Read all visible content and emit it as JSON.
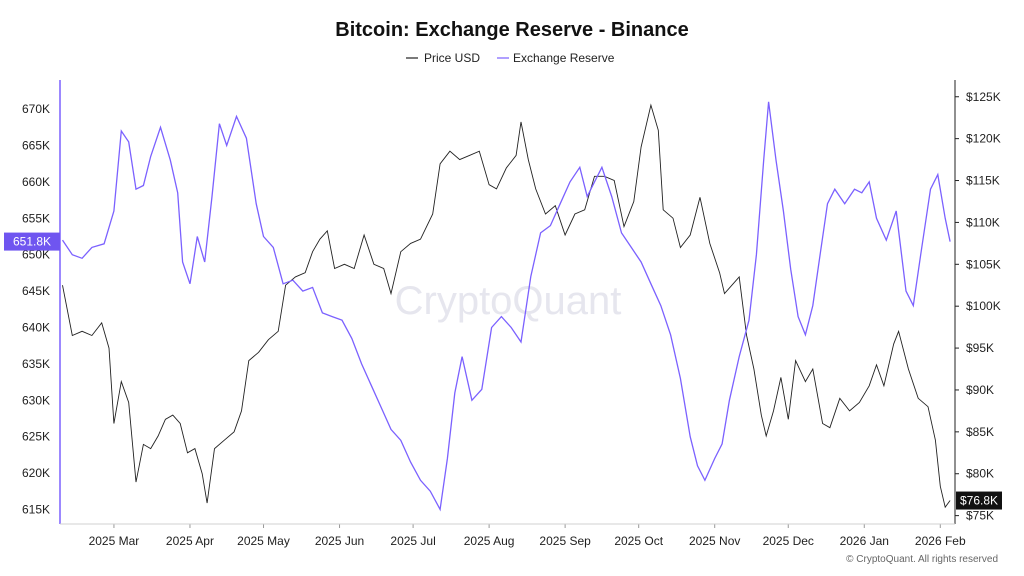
{
  "chart_data": {
    "type": "line",
    "title": "Bitcoin: Exchange Reserve - Binance",
    "legend": [
      "Price USD",
      "Exchange Reserve"
    ],
    "colors": {
      "price": "#222222",
      "reserve": "#7b61ff",
      "reserve_badge": "#6f55f0",
      "price_badge": "#111111"
    },
    "x_ticks": [
      "2025 Mar",
      "2025 Apr",
      "2025 May",
      "2025 Jun",
      "2025 Jul",
      "2025 Aug",
      "2025 Sep",
      "2025 Oct",
      "2025 Nov",
      "2025 Dec",
      "2026 Jan",
      "2026 Feb"
    ],
    "left_axis": {
      "ticks": [
        "670K",
        "665K",
        "660K",
        "655K",
        "650K",
        "645K",
        "640K",
        "635K",
        "630K",
        "625K",
        "620K",
        "615K"
      ],
      "ylim": [
        613000,
        674000
      ],
      "current_label": "651.8K"
    },
    "right_axis": {
      "ticks": [
        "$125K",
        "$120K",
        "$115K",
        "$110K",
        "$105K",
        "$100K",
        "$95K",
        "$90K",
        "$85K",
        "$80K",
        "$75K"
      ],
      "ylim": [
        74000,
        127000
      ],
      "current_label": "$76.8K"
    },
    "x_range": [
      "2025-02-07",
      "2026-02-07"
    ],
    "series": [
      {
        "name": "Exchange Reserve",
        "axis": "left",
        "points": [
          [
            "2025-02-08",
            652000
          ],
          [
            "2025-02-12",
            650000
          ],
          [
            "2025-02-16",
            649500
          ],
          [
            "2025-02-20",
            651000
          ],
          [
            "2025-02-25",
            651500
          ],
          [
            "2025-03-01",
            656000
          ],
          [
            "2025-03-04",
            667000
          ],
          [
            "2025-03-07",
            665500
          ],
          [
            "2025-03-10",
            659000
          ],
          [
            "2025-03-13",
            659500
          ],
          [
            "2025-03-16",
            663500
          ],
          [
            "2025-03-20",
            667500
          ],
          [
            "2025-03-24",
            663000
          ],
          [
            "2025-03-27",
            658500
          ],
          [
            "2025-03-29",
            649000
          ],
          [
            "2025-04-01",
            646000
          ],
          [
            "2025-04-04",
            652500
          ],
          [
            "2025-04-07",
            649000
          ],
          [
            "2025-04-10",
            658000
          ],
          [
            "2025-04-13",
            668000
          ],
          [
            "2025-04-16",
            665000
          ],
          [
            "2025-04-20",
            669000
          ],
          [
            "2025-04-24",
            666000
          ],
          [
            "2025-04-28",
            657000
          ],
          [
            "2025-05-01",
            652500
          ],
          [
            "2025-05-05",
            651000
          ],
          [
            "2025-05-09",
            646000
          ],
          [
            "2025-05-13",
            646500
          ],
          [
            "2025-05-17",
            645000
          ],
          [
            "2025-05-21",
            645500
          ],
          [
            "2025-05-25",
            642000
          ],
          [
            "2025-05-29",
            641500
          ],
          [
            "2025-06-02",
            641000
          ],
          [
            "2025-06-06",
            638500
          ],
          [
            "2025-06-10",
            635000
          ],
          [
            "2025-06-14",
            632000
          ],
          [
            "2025-06-18",
            629000
          ],
          [
            "2025-06-22",
            626000
          ],
          [
            "2025-06-26",
            624500
          ],
          [
            "2025-06-30",
            621500
          ],
          [
            "2025-07-04",
            619000
          ],
          [
            "2025-07-08",
            617500
          ],
          [
            "2025-07-12",
            615000
          ],
          [
            "2025-07-15",
            622000
          ],
          [
            "2025-07-18",
            631000
          ],
          [
            "2025-07-21",
            636000
          ],
          [
            "2025-07-25",
            630000
          ],
          [
            "2025-07-29",
            631500
          ],
          [
            "2025-08-02",
            640000
          ],
          [
            "2025-08-06",
            641500
          ],
          [
            "2025-08-10",
            640000
          ],
          [
            "2025-08-14",
            638000
          ],
          [
            "2025-08-18",
            647000
          ],
          [
            "2025-08-22",
            653000
          ],
          [
            "2025-08-26",
            654000
          ],
          [
            "2025-08-30",
            657000
          ],
          [
            "2025-09-03",
            660000
          ],
          [
            "2025-09-07",
            662000
          ],
          [
            "2025-09-10",
            658000
          ],
          [
            "2025-09-13",
            660000
          ],
          [
            "2025-09-16",
            662000
          ],
          [
            "2025-09-20",
            658000
          ],
          [
            "2025-09-24",
            653000
          ],
          [
            "2025-09-28",
            651000
          ],
          [
            "2025-10-02",
            649000
          ],
          [
            "2025-10-06",
            646000
          ],
          [
            "2025-10-10",
            643000
          ],
          [
            "2025-10-14",
            639000
          ],
          [
            "2025-10-18",
            633000
          ],
          [
            "2025-10-22",
            625000
          ],
          [
            "2025-10-25",
            621000
          ],
          [
            "2025-10-28",
            619000
          ],
          [
            "2025-11-01",
            622000
          ],
          [
            "2025-11-04",
            624000
          ],
          [
            "2025-11-07",
            630000
          ],
          [
            "2025-11-11",
            636000
          ],
          [
            "2025-11-15",
            641000
          ],
          [
            "2025-11-18",
            650000
          ],
          [
            "2025-11-21",
            663000
          ],
          [
            "2025-11-23",
            671000
          ],
          [
            "2025-11-26",
            663000
          ],
          [
            "2025-11-29",
            656000
          ],
          [
            "2025-12-02",
            648000
          ],
          [
            "2025-12-05",
            641500
          ],
          [
            "2025-12-08",
            639000
          ],
          [
            "2025-12-11",
            643000
          ],
          [
            "2025-12-14",
            650000
          ],
          [
            "2025-12-17",
            657000
          ],
          [
            "2025-12-20",
            659000
          ],
          [
            "2025-12-24",
            657000
          ],
          [
            "2025-12-28",
            659000
          ],
          [
            "2025-12-31",
            658500
          ],
          [
            "2026-01-03",
            660000
          ],
          [
            "2026-01-06",
            655000
          ],
          [
            "2026-01-10",
            652000
          ],
          [
            "2026-01-14",
            656000
          ],
          [
            "2026-01-18",
            645000
          ],
          [
            "2026-01-21",
            643000
          ],
          [
            "2026-01-24",
            650000
          ],
          [
            "2026-01-28",
            659000
          ],
          [
            "2026-01-31",
            661000
          ],
          [
            "2026-02-03",
            655000
          ],
          [
            "2026-02-05",
            651800
          ]
        ]
      },
      {
        "name": "Price USD",
        "axis": "right",
        "points": [
          [
            "2025-02-08",
            102500
          ],
          [
            "2025-02-12",
            96500
          ],
          [
            "2025-02-16",
            97000
          ],
          [
            "2025-02-20",
            96500
          ],
          [
            "2025-02-24",
            98000
          ],
          [
            "2025-02-27",
            95000
          ],
          [
            "2025-03-01",
            86000
          ],
          [
            "2025-03-04",
            91000
          ],
          [
            "2025-03-07",
            88500
          ],
          [
            "2025-03-10",
            79000
          ],
          [
            "2025-03-13",
            83500
          ],
          [
            "2025-03-16",
            83000
          ],
          [
            "2025-03-19",
            84500
          ],
          [
            "2025-03-22",
            86500
          ],
          [
            "2025-03-25",
            87000
          ],
          [
            "2025-03-28",
            86000
          ],
          [
            "2025-03-31",
            82500
          ],
          [
            "2025-04-03",
            83000
          ],
          [
            "2025-04-06",
            80000
          ],
          [
            "2025-04-08",
            76500
          ],
          [
            "2025-04-11",
            83000
          ],
          [
            "2025-04-15",
            84000
          ],
          [
            "2025-04-19",
            85000
          ],
          [
            "2025-04-22",
            87500
          ],
          [
            "2025-04-25",
            93500
          ],
          [
            "2025-04-29",
            94500
          ],
          [
            "2025-05-03",
            96000
          ],
          [
            "2025-05-07",
            97000
          ],
          [
            "2025-05-10",
            102500
          ],
          [
            "2025-05-14",
            103500
          ],
          [
            "2025-05-18",
            104000
          ],
          [
            "2025-05-21",
            106500
          ],
          [
            "2025-05-24",
            108000
          ],
          [
            "2025-05-27",
            109000
          ],
          [
            "2025-05-30",
            104500
          ],
          [
            "2025-06-03",
            105000
          ],
          [
            "2025-06-07",
            104500
          ],
          [
            "2025-06-11",
            108500
          ],
          [
            "2025-06-15",
            105000
          ],
          [
            "2025-06-19",
            104500
          ],
          [
            "2025-06-22",
            101500
          ],
          [
            "2025-06-26",
            106500
          ],
          [
            "2025-06-30",
            107500
          ],
          [
            "2025-07-04",
            108000
          ],
          [
            "2025-07-09",
            111000
          ],
          [
            "2025-07-12",
            117000
          ],
          [
            "2025-07-16",
            118500
          ],
          [
            "2025-07-20",
            117500
          ],
          [
            "2025-07-24",
            118000
          ],
          [
            "2025-07-28",
            118500
          ],
          [
            "2025-08-01",
            114500
          ],
          [
            "2025-08-04",
            114000
          ],
          [
            "2025-08-08",
            116500
          ],
          [
            "2025-08-12",
            118000
          ],
          [
            "2025-08-14",
            122000
          ],
          [
            "2025-08-17",
            117500
          ],
          [
            "2025-08-20",
            114000
          ],
          [
            "2025-08-24",
            111000
          ],
          [
            "2025-08-28",
            112000
          ],
          [
            "2025-09-01",
            108500
          ],
          [
            "2025-09-05",
            111000
          ],
          [
            "2025-09-09",
            111500
          ],
          [
            "2025-09-13",
            115500
          ],
          [
            "2025-09-17",
            115500
          ],
          [
            "2025-09-21",
            115000
          ],
          [
            "2025-09-25",
            109500
          ],
          [
            "2025-09-29",
            112500
          ],
          [
            "2025-10-02",
            119000
          ],
          [
            "2025-10-06",
            124000
          ],
          [
            "2025-10-09",
            121000
          ],
          [
            "2025-10-11",
            111500
          ],
          [
            "2025-10-15",
            110500
          ],
          [
            "2025-10-18",
            107000
          ],
          [
            "2025-10-22",
            108500
          ],
          [
            "2025-10-26",
            113000
          ],
          [
            "2025-10-30",
            107500
          ],
          [
            "2025-11-03",
            104000
          ],
          [
            "2025-11-05",
            101500
          ],
          [
            "2025-11-08",
            102500
          ],
          [
            "2025-11-11",
            103500
          ],
          [
            "2025-11-14",
            96500
          ],
          [
            "2025-11-17",
            92500
          ],
          [
            "2025-11-20",
            87000
          ],
          [
            "2025-11-22",
            84500
          ],
          [
            "2025-11-25",
            87500
          ],
          [
            "2025-11-28",
            91500
          ],
          [
            "2025-12-01",
            86500
          ],
          [
            "2025-12-04",
            93500
          ],
          [
            "2025-12-08",
            91000
          ],
          [
            "2025-12-11",
            92500
          ],
          [
            "2025-12-15",
            86000
          ],
          [
            "2025-12-18",
            85500
          ],
          [
            "2025-12-22",
            89000
          ],
          [
            "2025-12-26",
            87500
          ],
          [
            "2025-12-30",
            88500
          ],
          [
            "2026-01-03",
            90500
          ],
          [
            "2026-01-06",
            93000
          ],
          [
            "2026-01-09",
            90500
          ],
          [
            "2026-01-13",
            95500
          ],
          [
            "2026-01-15",
            97000
          ],
          [
            "2026-01-19",
            92500
          ],
          [
            "2026-01-23",
            89000
          ],
          [
            "2026-01-27",
            88000
          ],
          [
            "2026-01-30",
            84000
          ],
          [
            "2026-02-01",
            78500
          ],
          [
            "2026-02-03",
            76000
          ],
          [
            "2026-02-05",
            76800
          ]
        ]
      }
    ],
    "watermark": "CryptoQuant",
    "copyright": "© CryptoQuant. All rights reserved"
  }
}
